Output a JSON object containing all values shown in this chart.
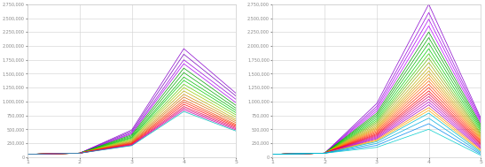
{
  "xlim": [
    1,
    5
  ],
  "ylim": [
    0,
    2750000
  ],
  "xticks": [
    1,
    2,
    3,
    4,
    5
  ],
  "yticks": [
    0,
    250000,
    500000,
    750000,
    1000000,
    1250000,
    1500000,
    1750000,
    2000000,
    2250000,
    2500000,
    2750000
  ],
  "bg_color": "#ffffff",
  "grid_color": "#d0d0d0",
  "line_width": 0.55,
  "figsize": [
    5.47,
    1.89
  ],
  "dpi": 100,
  "left_colors": [
    "#8800CC",
    "#7700BB",
    "#9900DD",
    "#AA00EE",
    "#009900",
    "#00AA00",
    "#00BB00",
    "#00CC00",
    "#55CC00",
    "#99CC00",
    "#BBAA00",
    "#CC8800",
    "#DD6600",
    "#EE4400",
    "#FF2200",
    "#FF0000",
    "#EE0044",
    "#DD0077",
    "#CC00AA",
    "#00BBBB"
  ],
  "right_colors": [
    "#8800CC",
    "#9900DD",
    "#AA00EE",
    "#BB00FF",
    "#009900",
    "#00AA00",
    "#00BB00",
    "#00CC00",
    "#33CC00",
    "#66BB00",
    "#99AA00",
    "#BBAA00",
    "#CCAA00",
    "#DD9900",
    "#EE8800",
    "#FF6600",
    "#FF4400",
    "#FF2200",
    "#FF0000",
    "#EE0033",
    "#DD0066",
    "#CC0099",
    "#BB00CC",
    "#AA00BB",
    "#FF8800",
    "#FFAA00",
    "#00BBCC",
    "#00AADD",
    "#0088EE",
    "#00CCCC"
  ],
  "left_peaks": [
    1950000,
    1850000,
    1750000,
    1680000,
    1600000,
    1520000,
    1440000,
    1380000,
    1310000,
    1250000,
    1190000,
    1130000,
    1080000,
    1030000,
    990000,
    950000,
    910000,
    880000,
    850000,
    820000
  ],
  "left_ends": [
    1150000,
    1100000,
    1040000,
    980000,
    930000,
    880000,
    840000,
    800000,
    760000,
    720000,
    680000,
    650000,
    620000,
    590000,
    570000,
    550000,
    530000,
    510000,
    490000,
    470000
  ],
  "right_peaks": [
    2750000,
    2600000,
    2480000,
    2360000,
    2250000,
    2150000,
    2050000,
    1950000,
    1860000,
    1780000,
    1700000,
    1620000,
    1550000,
    1490000,
    1430000,
    1370000,
    1310000,
    1250000,
    1190000,
    1140000,
    1090000,
    1040000,
    990000,
    940000,
    890000,
    840000,
    790000,
    700000,
    600000,
    500000
  ],
  "right_ends": [
    700000,
    670000,
    640000,
    610000,
    580000,
    550000,
    520000,
    490000,
    460000,
    430000,
    410000,
    390000,
    370000,
    350000,
    330000,
    310000,
    290000,
    270000,
    250000,
    230000,
    210000,
    190000,
    170000,
    150000,
    130000,
    110000,
    90000,
    70000,
    50000,
    30000
  ]
}
